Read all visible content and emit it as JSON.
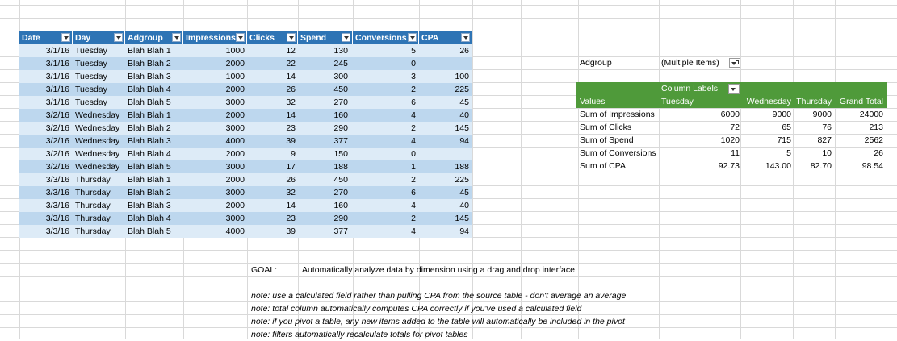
{
  "table": {
    "columns": [
      "Date",
      "Day",
      "Adgroup",
      "Impressions",
      "Clicks",
      "Spend",
      "Conversions",
      "CPA"
    ],
    "rows": [
      [
        "3/1/16",
        "Tuesday",
        "Blah Blah 1",
        "1000",
        "12",
        "130",
        "5",
        "26"
      ],
      [
        "3/1/16",
        "Tuesday",
        "Blah Blah 2",
        "2000",
        "22",
        "245",
        "0",
        ""
      ],
      [
        "3/1/16",
        "Tuesday",
        "Blah Blah 3",
        "1000",
        "14",
        "300",
        "3",
        "100"
      ],
      [
        "3/1/16",
        "Tuesday",
        "Blah Blah 4",
        "2000",
        "26",
        "450",
        "2",
        "225"
      ],
      [
        "3/1/16",
        "Tuesday",
        "Blah Blah 5",
        "3000",
        "32",
        "270",
        "6",
        "45"
      ],
      [
        "3/2/16",
        "Wednesday",
        "Blah Blah 1",
        "2000",
        "14",
        "160",
        "4",
        "40"
      ],
      [
        "3/2/16",
        "Wednesday",
        "Blah Blah 2",
        "3000",
        "23",
        "290",
        "2",
        "145"
      ],
      [
        "3/2/16",
        "Wednesday",
        "Blah Blah 3",
        "4000",
        "39",
        "377",
        "4",
        "94"
      ],
      [
        "3/2/16",
        "Wednesday",
        "Blah Blah 4",
        "2000",
        "9",
        "150",
        "0",
        ""
      ],
      [
        "3/2/16",
        "Wednesday",
        "Blah Blah 5",
        "3000",
        "17",
        "188",
        "1",
        "188"
      ],
      [
        "3/3/16",
        "Thursday",
        "Blah Blah 1",
        "2000",
        "26",
        "450",
        "2",
        "225"
      ],
      [
        "3/3/16",
        "Thursday",
        "Blah Blah 2",
        "3000",
        "32",
        "270",
        "6",
        "45"
      ],
      [
        "3/3/16",
        "Thursday",
        "Blah Blah 3",
        "2000",
        "14",
        "160",
        "4",
        "40"
      ],
      [
        "3/3/16",
        "Thursday",
        "Blah Blah 4",
        "3000",
        "23",
        "290",
        "2",
        "145"
      ],
      [
        "3/3/16",
        "Thursday",
        "Blah Blah 5",
        "4000",
        "39",
        "377",
        "4",
        "94"
      ]
    ]
  },
  "pivot": {
    "filter_label": "Adgroup",
    "filter_value": "(Multiple Items)",
    "column_labels": "Column Labels",
    "values_label": "Values",
    "col_headers": [
      "Tuesday",
      "Wednesday",
      "Thursday",
      "Grand Total"
    ],
    "rows": [
      {
        "label": "Sum of Impressions",
        "vals": [
          "6000",
          "9000",
          "9000",
          "24000"
        ]
      },
      {
        "label": "Sum of Clicks",
        "vals": [
          "72",
          "65",
          "76",
          "213"
        ]
      },
      {
        "label": "Sum of Spend",
        "vals": [
          "1020",
          "715",
          "827",
          "2562"
        ]
      },
      {
        "label": "Sum of Conversions",
        "vals": [
          "11",
          "5",
          "10",
          "26"
        ]
      },
      {
        "label": "Sum of  CPA",
        "vals": [
          "92.73",
          "143.00",
          "82.70",
          "98.54"
        ]
      }
    ]
  },
  "goal": {
    "label": "GOAL:",
    "text": "Automatically analyze data by dimension using a drag and drop interface"
  },
  "notes": [
    "note: use a calculated field rather than pulling CPA from the source table - don't average an average",
    "note: total column automatically computes CPA correctly if you've used a calculated field",
    "note: if you pivot a table, any new items added to the table will automatically be included in the pivot",
    "note: filters automatically recalculate totals for pivot tables"
  ]
}
